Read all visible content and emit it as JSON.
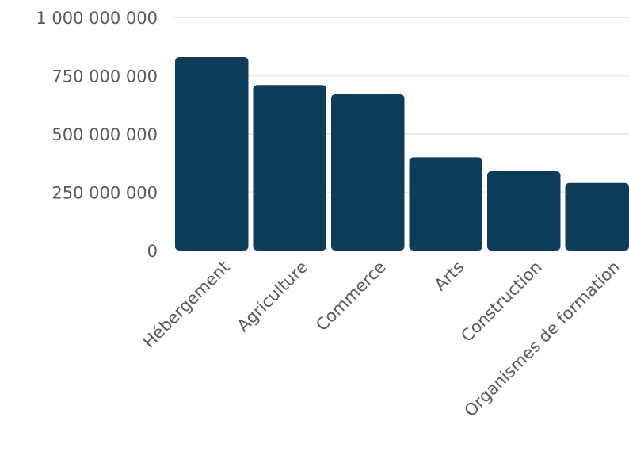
{
  "chart_data": {
    "type": "bar",
    "categories": [
      "Hébergement",
      "Agriculture",
      "Commerce",
      "Arts",
      "Construction",
      "Organismes de formation"
    ],
    "values": [
      830000000,
      710000000,
      670000000,
      400000000,
      340000000,
      290000000
    ],
    "ylim": [
      0,
      1000000000
    ],
    "yticks": [
      0,
      250000000,
      500000000,
      750000000,
      1000000000
    ],
    "ytick_labels": [
      "0",
      "250 000 000",
      "500 000 000",
      "750 000 000",
      "1 000 000 000"
    ],
    "grid": true,
    "bar_color": "#0e3d5a",
    "grid_color": "#e9e9e9"
  }
}
